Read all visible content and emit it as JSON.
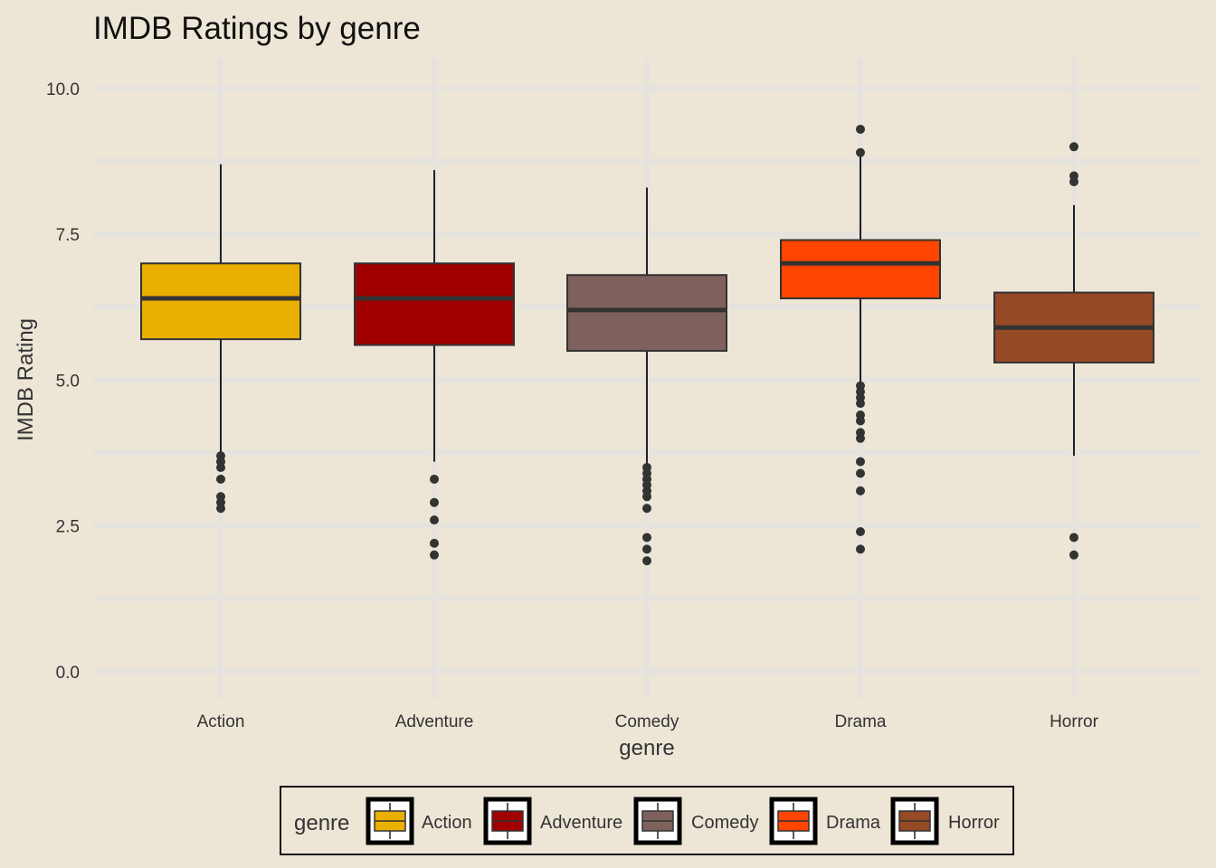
{
  "chart_data": {
    "type": "boxplot",
    "title": "IMDB Ratings by genre",
    "xlabel": "genre",
    "ylabel": "IMDB Rating",
    "ylim": [
      -0.5,
      10.5
    ],
    "yticks": [
      0,
      2.5,
      5,
      7.5,
      10
    ],
    "ytick_labels": [
      "0.0",
      "2.5",
      "5.0",
      "7.5",
      "10.0"
    ],
    "grid": true,
    "legend": {
      "title": "genre",
      "position": "bottom"
    },
    "categories": [
      "Action",
      "Adventure",
      "Comedy",
      "Drama",
      "Horror"
    ],
    "series": [
      {
        "name": "Action",
        "color": "#EAB001",
        "whisker_low": 3.7,
        "q1": 5.7,
        "median": 6.4,
        "q3": 7.0,
        "whisker_high": 8.7,
        "outliers": [
          3.7,
          3.6,
          3.5,
          3.3,
          3.0,
          2.9,
          2.8
        ]
      },
      {
        "name": "Adventure",
        "color": "#A00000",
        "whisker_low": 3.6,
        "q1": 5.6,
        "median": 6.4,
        "q3": 7.0,
        "whisker_high": 8.6,
        "outliers": [
          3.3,
          2.9,
          2.6,
          2.2,
          2.0
        ]
      },
      {
        "name": "Comedy",
        "color": "#7E615C",
        "whisker_low": 3.5,
        "q1": 5.5,
        "median": 6.2,
        "q3": 6.8,
        "whisker_high": 8.3,
        "outliers": [
          3.5,
          3.4,
          3.3,
          3.2,
          3.1,
          3.0,
          2.8,
          2.3,
          2.1,
          1.9
        ]
      },
      {
        "name": "Drama",
        "color": "#FF4500",
        "whisker_low": 4.9,
        "q1": 6.4,
        "median": 7.0,
        "q3": 7.4,
        "whisker_high": 8.9,
        "outliers": [
          9.3,
          8.9,
          4.9,
          4.8,
          4.7,
          4.6,
          4.4,
          4.3,
          4.1,
          4.0,
          3.6,
          3.4,
          3.1,
          2.4,
          2.1
        ]
      },
      {
        "name": "Horror",
        "color": "#954A25",
        "whisker_low": 3.7,
        "q1": 5.3,
        "median": 5.9,
        "q3": 6.5,
        "whisker_high": 8.0,
        "outliers": [
          9.0,
          8.5,
          8.4,
          2.3,
          2.0
        ]
      }
    ]
  }
}
